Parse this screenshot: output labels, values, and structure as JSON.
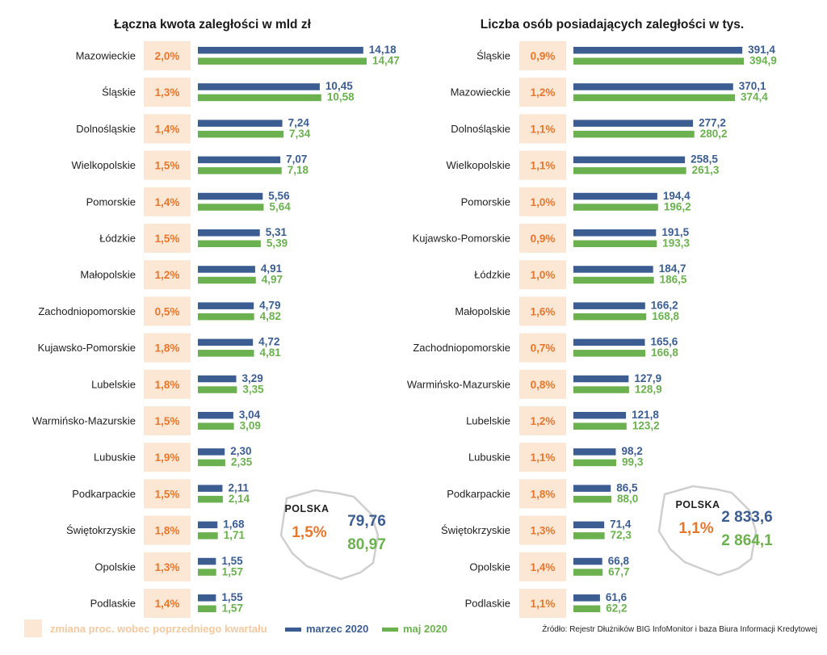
{
  "colors": {
    "march": "#3b5d91",
    "may": "#6bb14f",
    "pct_text": "#e8772e",
    "pct_box": "#fbe7d3",
    "map_outline": "#cfcfcf"
  },
  "chart_data": [
    {
      "type": "bar",
      "orientation": "horizontal",
      "title": "Łączna kwota zaległości w mld zł",
      "categories": [
        "Mazowieckie",
        "Śląskie",
        "Dolnośląskie",
        "Wielkopolskie",
        "Pomorskie",
        "Łódzkie",
        "Małopolskie",
        "Zachodniopomorskie",
        "Kujawsko-Pomorskie",
        "Lubelskie",
        "Warmińsko-Mazurskie",
        "Lubuskie",
        "Podkarpackie",
        "Świętokrzyskie",
        "Opolskie",
        "Podlaskie"
      ],
      "change_pct": [
        "2,0%",
        "1,3%",
        "1,4%",
        "1,5%",
        "1,4%",
        "1,5%",
        "1,2%",
        "0,5%",
        "1,8%",
        "1,8%",
        "1,5%",
        "1,9%",
        "1,5%",
        "1,8%",
        "1,3%",
        "1,4%"
      ],
      "series": [
        {
          "name": "marzec 2020",
          "values": [
            14.18,
            10.45,
            7.24,
            7.07,
            5.56,
            5.31,
            4.91,
            4.79,
            4.72,
            3.29,
            3.04,
            2.3,
            2.11,
            1.68,
            1.55,
            1.55
          ],
          "labels": [
            "14,18",
            "10,45",
            "7,24",
            "7,07",
            "5,56",
            "5,31",
            "4,91",
            "4,79",
            "4,72",
            "3,29",
            "3,04",
            "2,30",
            "2,11",
            "1,68",
            "1,55",
            "1,55"
          ]
        },
        {
          "name": "maj 2020",
          "values": [
            14.47,
            10.58,
            7.34,
            7.18,
            5.64,
            5.39,
            4.97,
            4.82,
            4.81,
            3.35,
            3.09,
            2.35,
            2.14,
            1.71,
            1.57,
            1.57
          ],
          "labels": [
            "14,47",
            "10,58",
            "7,34",
            "7,18",
            "5,64",
            "5,39",
            "4,97",
            "4,82",
            "4,81",
            "3,35",
            "3,09",
            "2,35",
            "2,14",
            "1,71",
            "1,57",
            "1,57"
          ]
        }
      ],
      "xlim": [
        0,
        14.47
      ],
      "total": {
        "label": "POLSKA",
        "change_pct": "1,5%",
        "march": "79,76",
        "may": "80,97"
      }
    },
    {
      "type": "bar",
      "orientation": "horizontal",
      "title": "Liczba osób posiadających zaległości w tys.",
      "categories": [
        "Śląskie",
        "Mazowieckie",
        "Dolnośląskie",
        "Wielkopolskie",
        "Pomorskie",
        "Kujawsko-Pomorskie",
        "Łódzkie",
        "Małopolskie",
        "Zachodniopomorskie",
        "Warmińsko-Mazurskie",
        "Lubelskie",
        "Lubuskie",
        "Podkarpackie",
        "Świętokrzyskie",
        "Opolskie",
        "Podlaskie"
      ],
      "change_pct": [
        "0,9%",
        "1,2%",
        "1,1%",
        "1,1%",
        "1,0%",
        "0,9%",
        "1,0%",
        "1,6%",
        "0,7%",
        "0,8%",
        "1,2%",
        "1,1%",
        "1,8%",
        "1,3%",
        "1,4%",
        "1,1%"
      ],
      "series": [
        {
          "name": "marzec 2020",
          "values": [
            391.4,
            370.1,
            277.2,
            258.5,
            194.4,
            191.5,
            184.7,
            166.2,
            165.6,
            127.9,
            121.8,
            98.2,
            86.5,
            71.4,
            66.8,
            61.6
          ],
          "labels": [
            "391,4",
            "370,1",
            "277,2",
            "258,5",
            "194,4",
            "191,5",
            "184,7",
            "166,2",
            "165,6",
            "127,9",
            "121,8",
            "98,2",
            "86,5",
            "71,4",
            "66,8",
            "61,6"
          ]
        },
        {
          "name": "maj 2020",
          "values": [
            394.9,
            374.4,
            280.2,
            261.3,
            196.2,
            193.3,
            186.5,
            168.8,
            166.8,
            128.9,
            123.2,
            99.3,
            88.0,
            72.3,
            67.7,
            62.2
          ],
          "labels": [
            "394,9",
            "374,4",
            "280,2",
            "261,3",
            "196,2",
            "193,3",
            "186,5",
            "168,8",
            "166,8",
            "128,9",
            "123,2",
            "99,3",
            "88,0",
            "72,3",
            "67,7",
            "62,2"
          ]
        }
      ],
      "xlim": [
        0,
        394.9
      ],
      "total": {
        "label": "POLSKA",
        "change_pct": "1,1%",
        "march": "2 833,6",
        "may": "2 864,1"
      }
    }
  ],
  "legend": {
    "change": "zmiana proc. wobec poprzedniego kwartału",
    "march": "marzec 2020",
    "may": "maj 2020"
  },
  "source": "Źródło: Rejestr Dłużników BIG InfoMonitor i baza Biura Informacji Kredytowej"
}
